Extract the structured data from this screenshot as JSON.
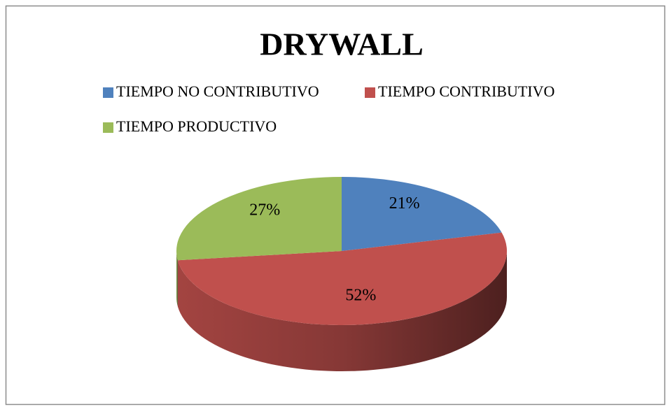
{
  "chart_data": {
    "type": "pie",
    "title": "DRYWALL",
    "categories": [
      "TIEMPO NO CONTRIBUTIVO",
      "TIEMPO CONTRIBUTIVO",
      "TIEMPO PRODUCTIVO"
    ],
    "values": [
      21,
      52,
      27
    ],
    "value_labels": [
      "21%",
      "52%",
      "27%"
    ],
    "colors": [
      "#4f81bd",
      "#c0504d",
      "#9bbb59"
    ],
    "legend": "top"
  }
}
